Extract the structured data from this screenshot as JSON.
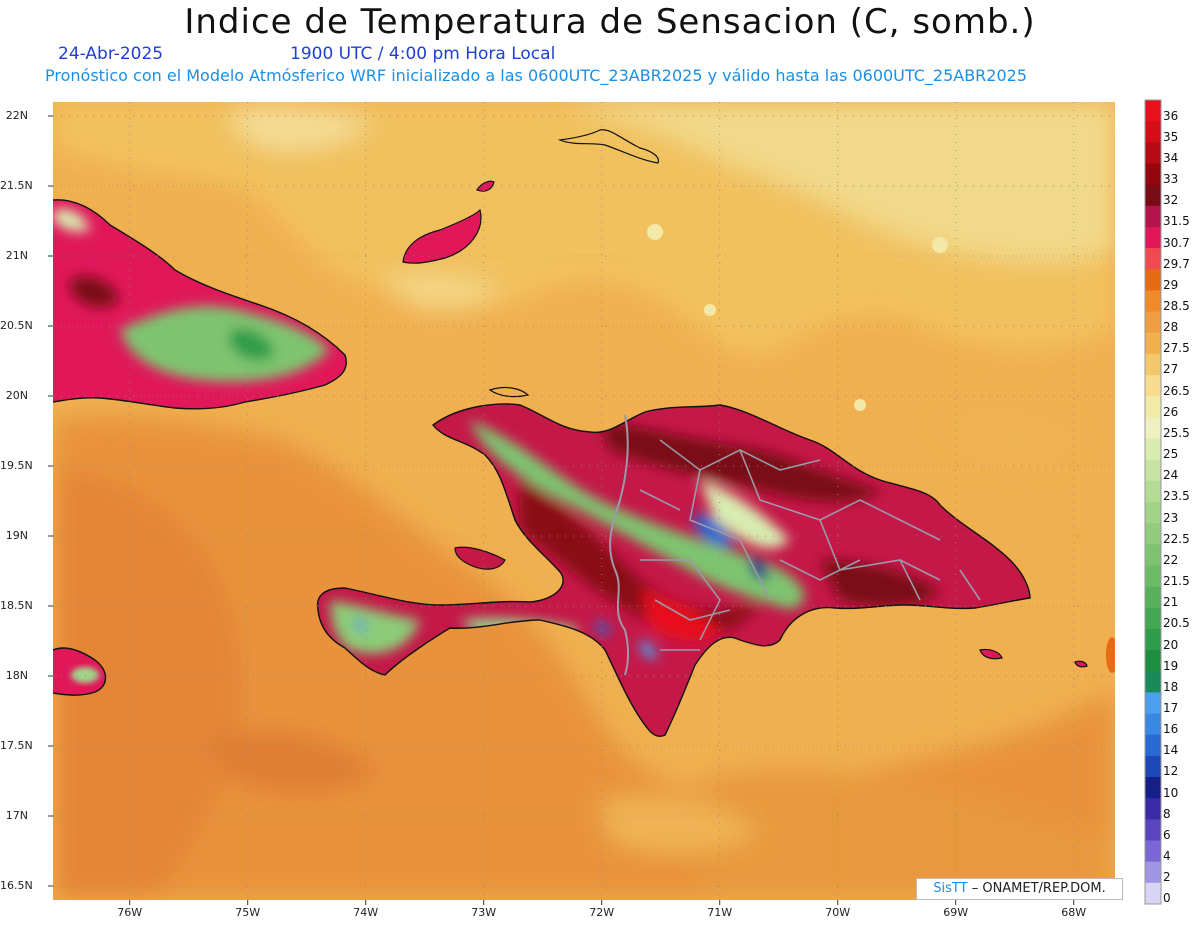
{
  "header": {
    "title": "Indice de Temperatura de Sensacion (C, somb.)",
    "date": "24-Abr-2025",
    "time": "1900 UTC / 4:00 pm Hora Local",
    "description": "Pronóstico con el Modelo Atmósferico WRF inicializado a las 0600UTC_23ABR2025 y válido hasta las  0600UTC_25ABR2025"
  },
  "axes": {
    "lat_labels": [
      "22N",
      "21.5N",
      "21N",
      "20.5N",
      "20N",
      "19.5N",
      "19N",
      "18.5N",
      "18N",
      "17.5N",
      "17N",
      "16.5N"
    ],
    "lat_values": [
      22,
      21.5,
      21,
      20.5,
      20,
      19.5,
      19,
      18.5,
      18,
      17.5,
      17,
      16.5
    ],
    "lon_labels": [
      "76W",
      "75W",
      "74W",
      "73W",
      "72W",
      "71W",
      "70W",
      "69W",
      "68W"
    ],
    "lon_values": [
      -76,
      -75,
      -74,
      -73,
      -72,
      -71,
      -70,
      -69,
      -68
    ],
    "lat_range": [
      16.4,
      22.1
    ],
    "lon_range": [
      -76.65,
      -67.65
    ]
  },
  "colorbar": {
    "labels": [
      "36",
      "35",
      "34",
      "33",
      "32",
      "31.5",
      "30.7",
      "29.7",
      "29",
      "28.5",
      "28",
      "27.5",
      "27",
      "26.5",
      "26",
      "25.5",
      "25",
      "24",
      "23.5",
      "23",
      "22.5",
      "22",
      "21.5",
      "21",
      "20.5",
      "20",
      "19",
      "18",
      "17",
      "16",
      "14",
      "12",
      "10",
      "8",
      "6",
      "4",
      "2",
      "0"
    ],
    "colors": [
      "#e8101a",
      "#d40d17",
      "#b80a12",
      "#96060c",
      "#7a0a14",
      "#b3134a",
      "#e0185a",
      "#f04a50",
      "#e86a12",
      "#ee8a28",
      "#f09c40",
      "#f2b04c",
      "#f4c86a",
      "#f6dc8c",
      "#f4eaa8",
      "#eef0c0",
      "#d8ecb0",
      "#c6e4a2",
      "#b4dc94",
      "#a2d488",
      "#90cc7c",
      "#7ec470",
      "#6cbc66",
      "#58b25c",
      "#44a852",
      "#2e9c48",
      "#1e8e40",
      "#1a8a5a",
      "#4aa0ee",
      "#3a88e4",
      "#2a6ad4",
      "#1c48b8",
      "#161e88",
      "#3a2aa8",
      "#5a44c0",
      "#7a66d4",
      "#a096e4",
      "#d8d4f4"
    ]
  },
  "credit": {
    "brand": "SisTT",
    "text": "– ONAMET/REP.DOM."
  },
  "colors": {
    "ocean": "#f0b050",
    "ocean_dark": "#e8923a",
    "ocean_light": "#f4d886",
    "grid": "#888888"
  }
}
